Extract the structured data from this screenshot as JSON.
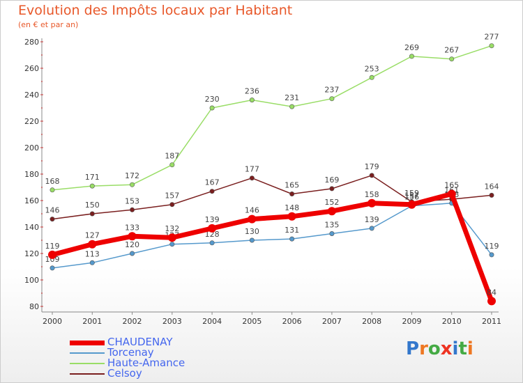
{
  "header": {
    "title": "Evolution des Impôts locaux par Habitant",
    "subtitle": "(en € et par an)"
  },
  "logo": {
    "text": "Proxiti"
  },
  "chart_data": {
    "type": "line",
    "title": "Evolution des Impôts locaux par Habitant",
    "subtitle": "(en € et par an)",
    "xlabel": "",
    "ylabel": "",
    "x": [
      "2000",
      "2001",
      "2002",
      "2003",
      "2004",
      "2005",
      "2006",
      "2007",
      "2008",
      "2009",
      "2010",
      "2011"
    ],
    "ylim": [
      80,
      280
    ],
    "yticks": [
      80,
      100,
      120,
      140,
      160,
      180,
      200,
      220,
      240,
      260,
      280
    ],
    "grid": false,
    "legend_position": "bottom-left",
    "series": [
      {
        "name": "Celsoy",
        "color": "#7a1f1f",
        "width": 1.5,
        "values": [
          146,
          150,
          153,
          157,
          167,
          177,
          165,
          169,
          179,
          159,
          161,
          164
        ],
        "labels": [
          "146",
          "150",
          "153",
          "157",
          "167",
          "177",
          "165",
          "169",
          "179",
          "159",
          "161",
          "164"
        ]
      },
      {
        "name": "Haute-Amance",
        "color": "#99dd66",
        "width": 1.5,
        "values": [
          168,
          171,
          172,
          187,
          230,
          236,
          231,
          237,
          253,
          269,
          267,
          277
        ],
        "labels": [
          "168",
          "171",
          "172",
          "187",
          "230",
          "236",
          "231",
          "237",
          "253",
          "269",
          "267",
          "277"
        ]
      },
      {
        "name": "Torcenay",
        "color": "#5599cc",
        "width": 1.5,
        "values": [
          109,
          113,
          120,
          127,
          128,
          130,
          131,
          135,
          139,
          156,
          158,
          119
        ],
        "labels": [
          "109",
          "113",
          "120",
          "127",
          "128",
          "130",
          "131",
          "135",
          "139",
          "156",
          "158",
          "119"
        ]
      },
      {
        "name": "CHAUDENAY",
        "color": "#ee0000",
        "width": 7,
        "values": [
          119,
          127,
          133,
          132,
          139,
          146,
          148,
          152,
          158,
          157,
          165,
          84
        ],
        "labels": [
          "119",
          "127",
          "133",
          "132",
          "139",
          "146",
          "148",
          "152",
          "158",
          "157",
          "165",
          "84"
        ]
      }
    ],
    "legend_order": [
      "CHAUDENAY",
      "Torcenay",
      "Haute-Amance",
      "Celsoy"
    ]
  }
}
